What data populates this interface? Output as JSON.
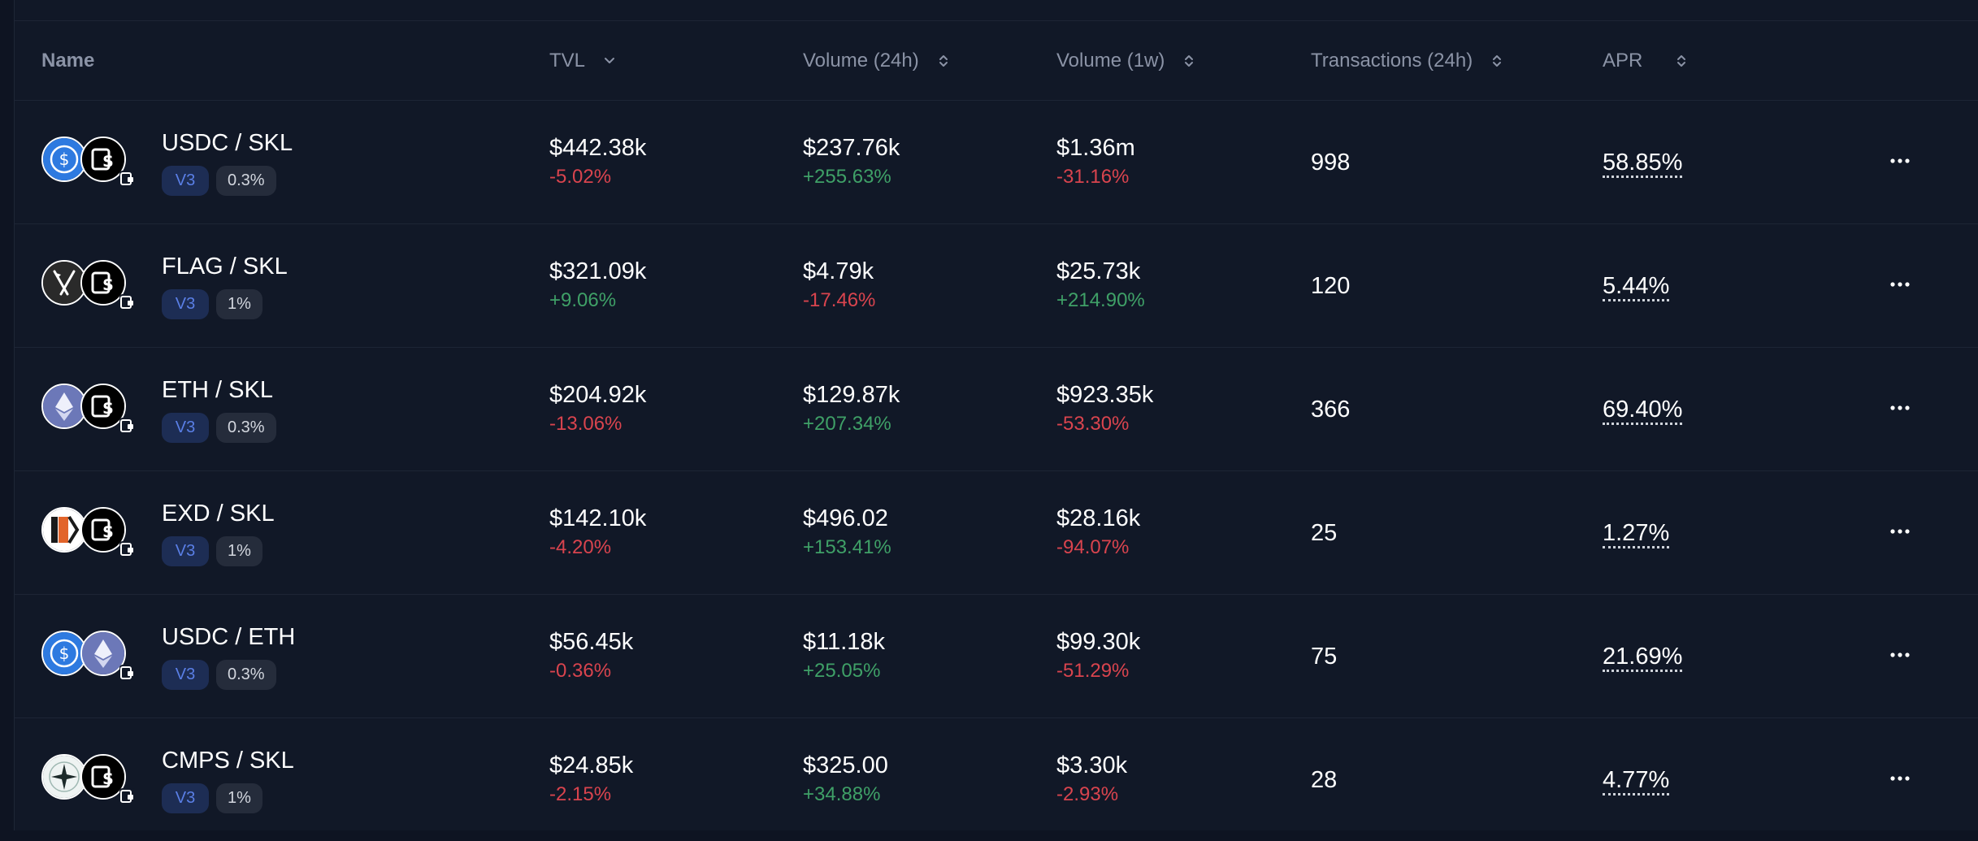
{
  "table": {
    "headers": {
      "name": "Name",
      "tvl": "TVL",
      "volume_24h": "Volume (24h)",
      "volume_1w": "Volume (1w)",
      "transactions_24h": "Transactions (24h)",
      "apr": "APR"
    },
    "sort_icons": {
      "tvl": "chevron-down-icon",
      "volume_24h": "sort-icon",
      "volume_1w": "sort-icon",
      "transactions_24h": "sort-icon",
      "apr": "sort-icon"
    },
    "rows": [
      {
        "pair": "USDC / SKL",
        "token_icons": [
          "usdc-icon",
          "skl-icon"
        ],
        "version": "V3",
        "fee": "0.3%",
        "tvl": "$442.38k",
        "tvl_change": "-5.02%",
        "volume_24h": "$237.76k",
        "volume_24h_change": "+255.63%",
        "volume_1w": "$1.36m",
        "volume_1w_change": "-31.16%",
        "transactions_24h": "998",
        "apr": "58.85%"
      },
      {
        "pair": "FLAG / SKL",
        "token_icons": [
          "flag-icon",
          "skl-icon"
        ],
        "version": "V3",
        "fee": "1%",
        "tvl": "$321.09k",
        "tvl_change": "+9.06%",
        "volume_24h": "$4.79k",
        "volume_24h_change": "-17.46%",
        "volume_1w": "$25.73k",
        "volume_1w_change": "+214.90%",
        "transactions_24h": "120",
        "apr": "5.44%"
      },
      {
        "pair": "ETH / SKL",
        "token_icons": [
          "eth-icon",
          "skl-icon"
        ],
        "version": "V3",
        "fee": "0.3%",
        "tvl": "$204.92k",
        "tvl_change": "-13.06%",
        "volume_24h": "$129.87k",
        "volume_24h_change": "+207.34%",
        "volume_1w": "$923.35k",
        "volume_1w_change": "-53.30%",
        "transactions_24h": "366",
        "apr": "69.40%"
      },
      {
        "pair": "EXD / SKL",
        "token_icons": [
          "exd-icon",
          "skl-icon"
        ],
        "version": "V3",
        "fee": "1%",
        "tvl": "$142.10k",
        "tvl_change": "-4.20%",
        "volume_24h": "$496.02",
        "volume_24h_change": "+153.41%",
        "volume_1w": "$28.16k",
        "volume_1w_change": "-94.07%",
        "transactions_24h": "25",
        "apr": "1.27%"
      },
      {
        "pair": "USDC / ETH",
        "token_icons": [
          "usdc-icon",
          "eth-icon"
        ],
        "version": "V3",
        "fee": "0.3%",
        "tvl": "$56.45k",
        "tvl_change": "-0.36%",
        "volume_24h": "$11.18k",
        "volume_24h_change": "+25.05%",
        "volume_1w": "$99.30k",
        "volume_1w_change": "-51.29%",
        "transactions_24h": "75",
        "apr": "21.69%"
      },
      {
        "pair": "CMPS / SKL",
        "token_icons": [
          "cmps-icon",
          "skl-icon"
        ],
        "version": "V3",
        "fee": "1%",
        "tvl": "$24.85k",
        "tvl_change": "-2.15%",
        "volume_24h": "$325.00",
        "volume_24h_change": "+34.88%",
        "volume_1w": "$3.30k",
        "volume_1w_change": "-2.93%",
        "transactions_24h": "28",
        "apr": "4.77%"
      }
    ]
  },
  "colors": {
    "background": "#111827",
    "positive": "#3fa067",
    "negative": "#d9444e",
    "version_tag": "#5a7fe6",
    "muted_text": "#8b93a6"
  }
}
